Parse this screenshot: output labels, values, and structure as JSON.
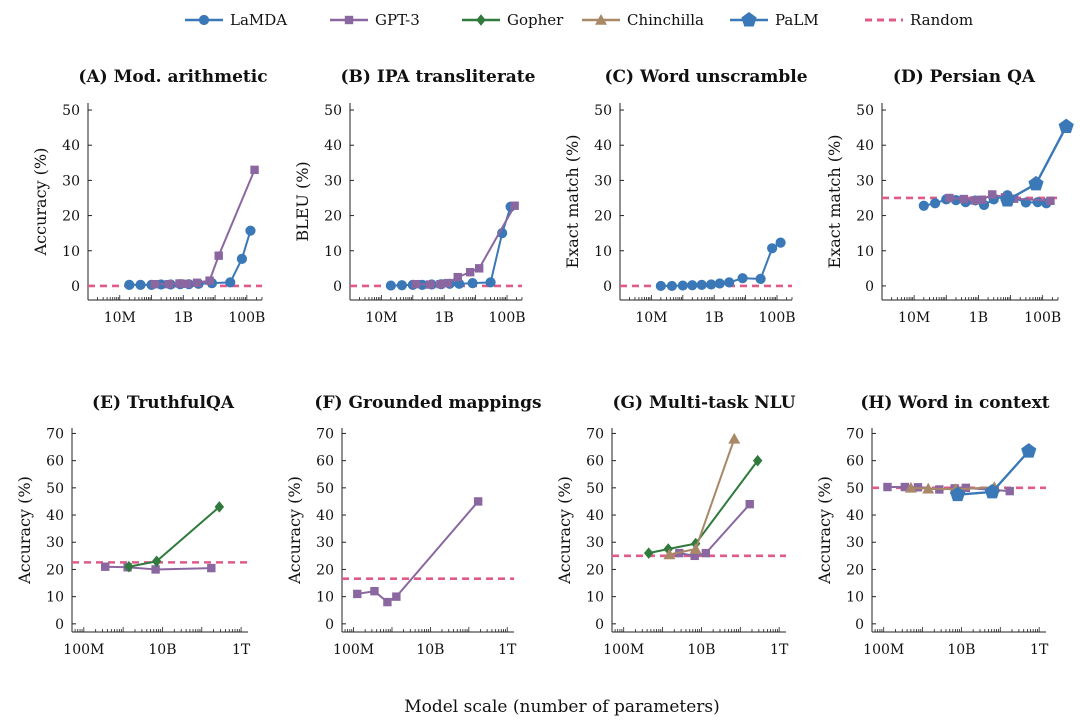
{
  "colors": {
    "LaMDA": "#3a78b8",
    "GPT-3": "#8a67a0",
    "Gopher": "#2f7a3c",
    "Chinchilla": "#a88866",
    "PaLM": "#3a78b8",
    "Random": "#e05a8a"
  },
  "markers": {
    "LaMDA": "circle",
    "GPT-3": "square",
    "Gopher": "diamond",
    "Chinchilla": "triangle",
    "PaLM": "pentagon",
    "Random": "dashed-line"
  },
  "legend": {
    "placement": "top-center",
    "entries": [
      "LaMDA",
      "GPT-3",
      "Gopher",
      "Chinchilla",
      "PaLM",
      "Random"
    ]
  },
  "figure": {
    "xlabel": "Model scale (number of parameters)"
  },
  "chart_data": [
    {
      "type": "line",
      "title": "(A) Mod. arithmetic",
      "ylabel": "Accuracy (%)",
      "xscale": "log",
      "xlim": [
        1000000,
        300000000000
      ],
      "ylim": [
        -4,
        52
      ],
      "xticks": [
        {
          "value": 10000000,
          "label": "10M"
        },
        {
          "value": 1000000000,
          "label": "1B"
        },
        {
          "value": 100000000000,
          "label": "100B"
        }
      ],
      "yticks": [
        0,
        10,
        20,
        30,
        40,
        50
      ],
      "random_baseline": 0,
      "series": [
        {
          "name": "LaMDA",
          "x": [
            20000000,
            45000000,
            100000000,
            200000000,
            400000000,
            800000000,
            1500000000,
            3000000000,
            8000000000,
            30000000000,
            70000000000,
            130000000000
          ],
          "y": [
            0.3,
            0.3,
            0.3,
            0.4,
            0.4,
            0.5,
            0.5,
            0.6,
            0.8,
            1.0,
            7.7,
            15.7
          ]
        },
        {
          "name": "GPT-3",
          "x": [
            125000000,
            350000000,
            760000000,
            1300000000,
            2700000000,
            6700000000,
            13000000000,
            175000000000
          ],
          "y": [
            0.5,
            0.5,
            0.7,
            0.6,
            0.9,
            1.5,
            8.6,
            33.0
          ]
        }
      ]
    },
    {
      "type": "line",
      "title": "(B) IPA transliterate",
      "ylabel": "BLEU (%)",
      "xscale": "log",
      "xlim": [
        1000000,
        300000000000
      ],
      "ylim": [
        -4,
        52
      ],
      "xticks": [
        {
          "value": 10000000,
          "label": "10M"
        },
        {
          "value": 1000000000,
          "label": "1B"
        },
        {
          "value": 100000000000,
          "label": "100B"
        }
      ],
      "yticks": [
        0,
        10,
        20,
        30,
        40,
        50
      ],
      "random_baseline": 0,
      "series": [
        {
          "name": "LaMDA",
          "x": [
            20000000,
            45000000,
            100000000,
            200000000,
            400000000,
            800000000,
            1500000000,
            3000000000,
            8000000000,
            30000000000,
            70000000000,
            130000000000
          ],
          "y": [
            0.1,
            0.2,
            0.3,
            0.3,
            0.4,
            0.5,
            0.6,
            0.6,
            0.8,
            1.0,
            15.0,
            22.5
          ]
        },
        {
          "name": "GPT-3",
          "x": [
            125000000,
            350000000,
            760000000,
            1300000000,
            2700000000,
            6700000000,
            13000000000,
            175000000000
          ],
          "y": [
            0.5,
            0.4,
            0.5,
            0.8,
            2.5,
            3.9,
            5.0,
            22.8
          ]
        }
      ]
    },
    {
      "type": "line",
      "title": "(C) Word unscramble",
      "ylabel": "Exact match (%)",
      "xscale": "log",
      "xlim": [
        1000000,
        300000000000
      ],
      "ylim": [
        -4,
        52
      ],
      "xticks": [
        {
          "value": 10000000,
          "label": "10M"
        },
        {
          "value": 1000000000,
          "label": "1B"
        },
        {
          "value": 100000000000,
          "label": "100B"
        }
      ],
      "yticks": [
        0,
        10,
        20,
        30,
        40,
        50
      ],
      "random_baseline": 0,
      "series": [
        {
          "name": "LaMDA",
          "x": [
            20000000,
            45000000,
            100000000,
            200000000,
            400000000,
            800000000,
            1500000000,
            3000000000,
            8000000000,
            30000000000,
            70000000000,
            130000000000
          ],
          "y": [
            0.0,
            0.0,
            0.1,
            0.2,
            0.3,
            0.4,
            0.7,
            1.0,
            2.2,
            2.0,
            10.7,
            12.3
          ]
        }
      ]
    },
    {
      "type": "line",
      "title": "(D) Persian QA",
      "ylabel": "Exact match (%)",
      "xscale": "log",
      "xlim": [
        1000000,
        300000000000
      ],
      "ylim": [
        -4,
        52
      ],
      "xticks": [
        {
          "value": 10000000,
          "label": "10M"
        },
        {
          "value": 1000000000,
          "label": "1B"
        },
        {
          "value": 100000000000,
          "label": "100B"
        }
      ],
      "yticks": [
        0,
        10,
        20,
        30,
        40,
        50
      ],
      "random_baseline": 25,
      "series": [
        {
          "name": "LaMDA",
          "x": [
            20000000,
            45000000,
            100000000,
            200000000,
            400000000,
            800000000,
            1500000000,
            3000000000,
            8000000000,
            30000000000,
            70000000000,
            130000000000
          ],
          "y": [
            22.8,
            23.5,
            24.6,
            24.4,
            23.8,
            24.3,
            23.0,
            24.6,
            25.8,
            23.7,
            23.8,
            23.5
          ]
        },
        {
          "name": "GPT-3",
          "x": [
            125000000,
            350000000,
            760000000,
            1300000000,
            2700000000,
            6700000000,
            13000000000,
            175000000000
          ],
          "y": [
            25.0,
            24.7,
            24.3,
            24.5,
            26.0,
            25.2,
            24.8,
            24.2
          ]
        },
        {
          "name": "PaLM",
          "x": [
            8000000000,
            62000000000,
            540000000000
          ],
          "y": [
            24.4,
            29.0,
            45.3
          ]
        }
      ]
    },
    {
      "type": "line",
      "title": "(E) TruthfulQA",
      "ylabel": "Accuracy (%)",
      "xscale": "log",
      "xlim": [
        50000000,
        1500000000000
      ],
      "ylim": [
        -3,
        72
      ],
      "xticks": [
        {
          "value": 100000000,
          "label": "100M"
        },
        {
          "value": 10000000000,
          "label": "10B"
        },
        {
          "value": 1000000000000,
          "label": "1T"
        }
      ],
      "yticks": [
        0,
        10,
        20,
        30,
        40,
        50,
        60,
        70
      ],
      "random_baseline": 22.6,
      "series": [
        {
          "name": "GPT-3",
          "x": [
            350000000,
            1300000000,
            6700000000,
            175000000000
          ],
          "y": [
            21.0,
            20.8,
            20.0,
            20.5
          ]
        },
        {
          "name": "Gopher",
          "x": [
            1400000000,
            7100000000,
            280000000000
          ],
          "y": [
            21.0,
            23.0,
            43.0
          ]
        }
      ]
    },
    {
      "type": "line",
      "title": "(F) Grounded mappings",
      "ylabel": "Accuracy (%)",
      "xscale": "log",
      "xlim": [
        50000000,
        1500000000000
      ],
      "ylim": [
        -3,
        72
      ],
      "xticks": [
        {
          "value": 100000000,
          "label": "100M"
        },
        {
          "value": 10000000000,
          "label": "10B"
        },
        {
          "value": 1000000000000,
          "label": "1T"
        }
      ],
      "yticks": [
        0,
        10,
        20,
        30,
        40,
        50,
        60,
        70
      ],
      "random_baseline": 16.6,
      "series": [
        {
          "name": "GPT-3",
          "x": [
            125000000,
            350000000,
            760000000,
            1300000000,
            175000000000
          ],
          "y": [
            11.0,
            12.0,
            8.0,
            10.0,
            45.0
          ]
        }
      ]
    },
    {
      "type": "line",
      "title": "(G) Multi-task NLU",
      "ylabel": "Accuracy (%)",
      "xscale": "log",
      "xlim": [
        50000000,
        1500000000000
      ],
      "ylim": [
        -3,
        72
      ],
      "xticks": [
        {
          "value": 100000000,
          "label": "100M"
        },
        {
          "value": 10000000000,
          "label": "10B"
        },
        {
          "value": 1000000000000,
          "label": "1T"
        }
      ],
      "yticks": [
        0,
        10,
        20,
        30,
        40,
        50,
        60,
        70
      ],
      "random_baseline": 25,
      "series": [
        {
          "name": "GPT-3",
          "x": [
            2700000000,
            6700000000,
            13000000000,
            175000000000
          ],
          "y": [
            26.0,
            25.0,
            26.0,
            44.0
          ]
        },
        {
          "name": "Gopher",
          "x": [
            440000000,
            1400000000,
            7100000000,
            280000000000
          ],
          "y": [
            26.0,
            27.5,
            29.5,
            60.0
          ]
        },
        {
          "name": "Chinchilla",
          "x": [
            1500000000,
            7100000000,
            70000000000
          ],
          "y": [
            25.5,
            27.5,
            68.0
          ]
        }
      ]
    },
    {
      "type": "line",
      "title": "(H) Word in context",
      "ylabel": "Accuracy (%)",
      "xscale": "log",
      "xlim": [
        50000000,
        1500000000000
      ],
      "ylim": [
        -3,
        72
      ],
      "xticks": [
        {
          "value": 100000000,
          "label": "100M"
        },
        {
          "value": 10000000000,
          "label": "10B"
        },
        {
          "value": 1000000000000,
          "label": "1T"
        }
      ],
      "yticks": [
        0,
        10,
        20,
        30,
        40,
        50,
        60,
        70
      ],
      "random_baseline": 50,
      "series": [
        {
          "name": "GPT-3",
          "x": [
            125000000,
            350000000,
            760000000,
            2700000000,
            6700000000,
            13000000000,
            175000000000
          ],
          "y": [
            50.3,
            50.3,
            50.2,
            49.4,
            49.8,
            50.0,
            48.8
          ]
        },
        {
          "name": "Chinchilla",
          "x": [
            500000000,
            1400000000,
            7100000000,
            70000000000
          ],
          "y": [
            50.0,
            49.7,
            49.5,
            50.2
          ]
        },
        {
          "name": "PaLM",
          "x": [
            8000000000,
            62000000000,
            540000000000
          ],
          "y": [
            47.5,
            48.5,
            63.5
          ]
        }
      ]
    }
  ]
}
